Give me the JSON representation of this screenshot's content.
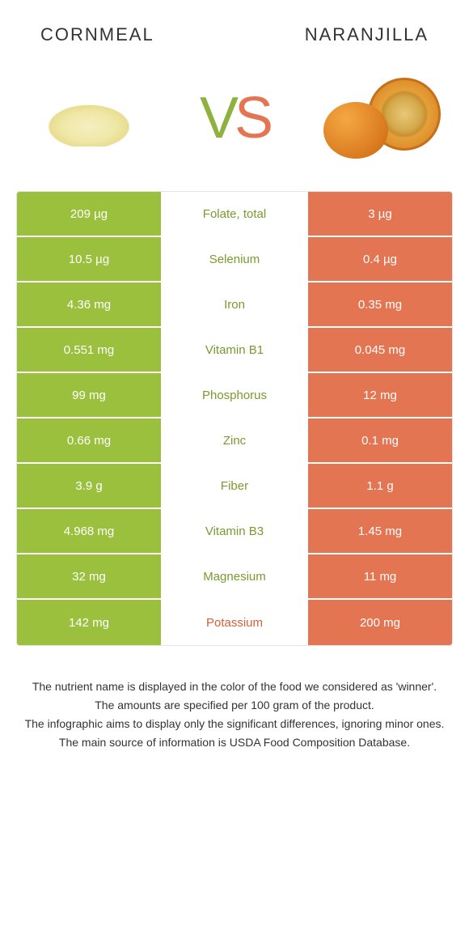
{
  "colors": {
    "green": "#9ac03d",
    "orange": "#e47552",
    "green_text": "#7a9a2e",
    "orange_text": "#d4603c"
  },
  "left_food": {
    "name": "Cornmeal"
  },
  "right_food": {
    "name": "Naranjilla"
  },
  "rows": [
    {
      "left": "209 µg",
      "label": "Folate, total",
      "right": "3 µg",
      "winner": "left"
    },
    {
      "left": "10.5 µg",
      "label": "Selenium",
      "right": "0.4 µg",
      "winner": "left"
    },
    {
      "left": "4.36 mg",
      "label": "Iron",
      "right": "0.35 mg",
      "winner": "left"
    },
    {
      "left": "0.551 mg",
      "label": "Vitamin B1",
      "right": "0.045 mg",
      "winner": "left"
    },
    {
      "left": "99 mg",
      "label": "Phosphorus",
      "right": "12 mg",
      "winner": "left"
    },
    {
      "left": "0.66 mg",
      "label": "Zinc",
      "right": "0.1 mg",
      "winner": "left"
    },
    {
      "left": "3.9 g",
      "label": "Fiber",
      "right": "1.1 g",
      "winner": "left"
    },
    {
      "left": "4.968 mg",
      "label": "Vitamin B3",
      "right": "1.45 mg",
      "winner": "left"
    },
    {
      "left": "32 mg",
      "label": "Magnesium",
      "right": "11 mg",
      "winner": "left"
    },
    {
      "left": "142 mg",
      "label": "Potassium",
      "right": "200 mg",
      "winner": "right"
    }
  ],
  "footnotes": [
    "The nutrient name is displayed in the color of the food we considered as 'winner'.",
    "The amounts are specified per 100 gram of the product.",
    "The infographic aims to display only the significant differences, ignoring minor ones.",
    "The main source of information is USDA Food Composition Database."
  ]
}
